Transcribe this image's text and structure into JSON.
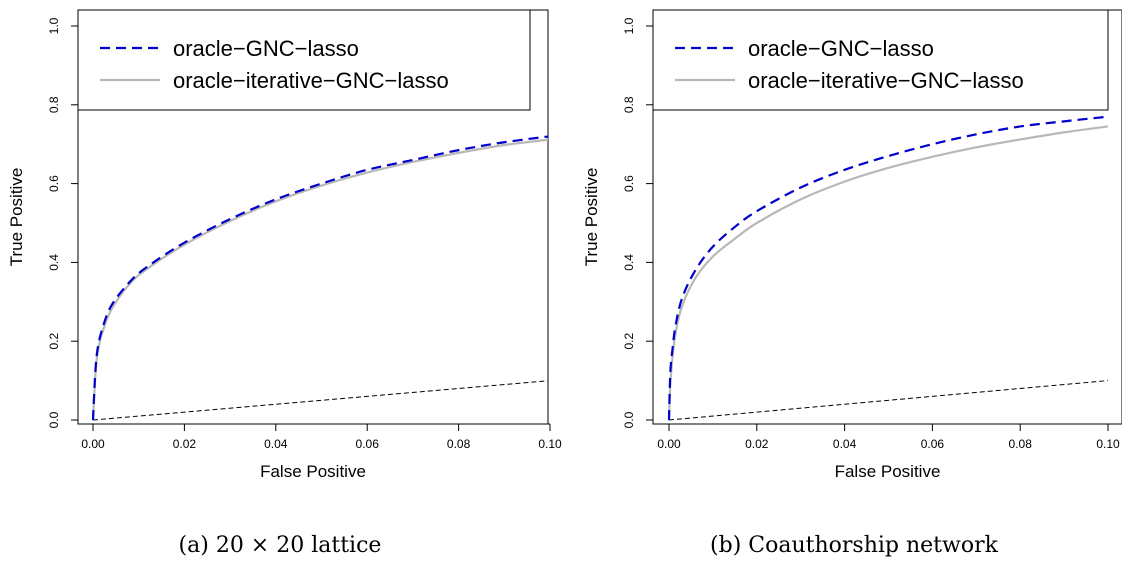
{
  "chart_data": [
    {
      "type": "line",
      "caption": "(a) 20 × 20 lattice",
      "xlabel": "False Positive",
      "ylabel": "True Positive",
      "xlim": [
        0,
        0.1
      ],
      "ylim": [
        0,
        1.0
      ],
      "x_ticks": [
        "0.00",
        "0.02",
        "0.04",
        "0.06",
        "0.08",
        "0.10"
      ],
      "y_ticks": [
        "0.0",
        "0.2",
        "0.4",
        "0.6",
        "0.8",
        "1.0"
      ],
      "grid": false,
      "legend_position": "top",
      "series": [
        {
          "name": "oracle−GNC−lasso",
          "color": "#0000cc",
          "dash": "dashed",
          "x": [
            0,
            0.0005,
            0.001,
            0.002,
            0.004,
            0.008,
            0.012,
            0.02,
            0.03,
            0.04,
            0.05,
            0.06,
            0.07,
            0.08,
            0.09,
            0.1
          ],
          "y": [
            0,
            0.12,
            0.18,
            0.23,
            0.29,
            0.35,
            0.39,
            0.45,
            0.51,
            0.56,
            0.6,
            0.635,
            0.66,
            0.685,
            0.705,
            0.72
          ]
        },
        {
          "name": "oracle−iterative−GNC−lasso",
          "color": "#b8b8b8",
          "dash": "solid",
          "x": [
            0,
            0.0005,
            0.001,
            0.002,
            0.004,
            0.008,
            0.012,
            0.02,
            0.03,
            0.04,
            0.05,
            0.06,
            0.07,
            0.08,
            0.09,
            0.1
          ],
          "y": [
            0,
            0.11,
            0.17,
            0.22,
            0.28,
            0.345,
            0.385,
            0.445,
            0.505,
            0.555,
            0.595,
            0.628,
            0.655,
            0.678,
            0.698,
            0.712
          ]
        },
        {
          "name": "",
          "color": "#000000",
          "dash": "dashed",
          "x": [
            0,
            0.1
          ],
          "y": [
            0,
            0.1
          ]
        }
      ]
    },
    {
      "type": "line",
      "caption": "(b) Coauthorship network",
      "xlabel": "False Positive",
      "ylabel": "True Positive",
      "xlim": [
        0,
        0.1
      ],
      "ylim": [
        0,
        1.0
      ],
      "x_ticks": [
        "0.00",
        "0.02",
        "0.04",
        "0.06",
        "0.08",
        "0.10"
      ],
      "y_ticks": [
        "0.0",
        "0.2",
        "0.4",
        "0.6",
        "0.8",
        "1.0"
      ],
      "grid": false,
      "legend_position": "top",
      "series": [
        {
          "name": "oracle−GNC−lasso",
          "color": "#0000cc",
          "dash": "dashed",
          "x": [
            0,
            0.0003,
            0.0008,
            0.0015,
            0.003,
            0.006,
            0.01,
            0.015,
            0.02,
            0.03,
            0.04,
            0.05,
            0.06,
            0.07,
            0.08,
            0.09,
            0.1
          ],
          "y": [
            0,
            0.12,
            0.18,
            0.24,
            0.31,
            0.38,
            0.44,
            0.49,
            0.53,
            0.59,
            0.635,
            0.67,
            0.7,
            0.725,
            0.745,
            0.758,
            0.77
          ]
        },
        {
          "name": "oracle−iterative−GNC−lasso",
          "color": "#b8b8b8",
          "dash": "solid",
          "x": [
            0,
            0.0003,
            0.0008,
            0.0015,
            0.003,
            0.006,
            0.01,
            0.015,
            0.02,
            0.03,
            0.04,
            0.05,
            0.06,
            0.07,
            0.08,
            0.09,
            0.1
          ],
          "y": [
            0,
            0.09,
            0.16,
            0.22,
            0.29,
            0.36,
            0.415,
            0.46,
            0.5,
            0.56,
            0.605,
            0.64,
            0.668,
            0.692,
            0.712,
            0.73,
            0.745
          ]
        },
        {
          "name": "",
          "color": "#000000",
          "dash": "dashed",
          "x": [
            0,
            0.1
          ],
          "y": [
            0,
            0.1
          ]
        }
      ]
    }
  ]
}
